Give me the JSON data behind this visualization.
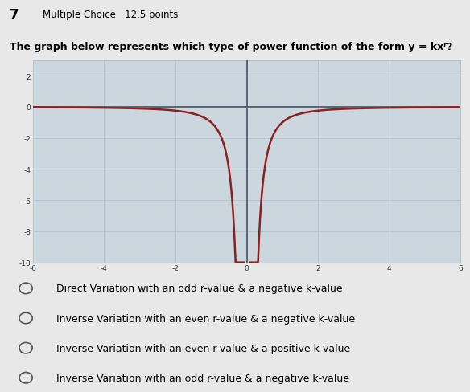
{
  "question_number": "7",
  "question_type": "Multiple Choice   12.5 points",
  "question_text": "The graph below represents which type of power function of the form y = kxʳ?",
  "k": -1,
  "r": -2,
  "xlim": [
    -6,
    6
  ],
  "ylim": [
    -10,
    3
  ],
  "curve_color": "#8B2020",
  "grid_major_color": "#b8c4cc",
  "grid_minor_color": "#cdd6dc",
  "bg_color": "#ccd6de",
  "fig_color": "#e8e8e8",
  "header_color": "#d8d8d8",
  "choices": [
    "Direct Variation with an odd r-value & a negative k-value",
    "Inverse Variation with an even r-value & a negative k-value",
    "Inverse Variation with an even r-value & a positive k-value",
    "Inverse Variation with an odd r-value & a negative k-value"
  ]
}
